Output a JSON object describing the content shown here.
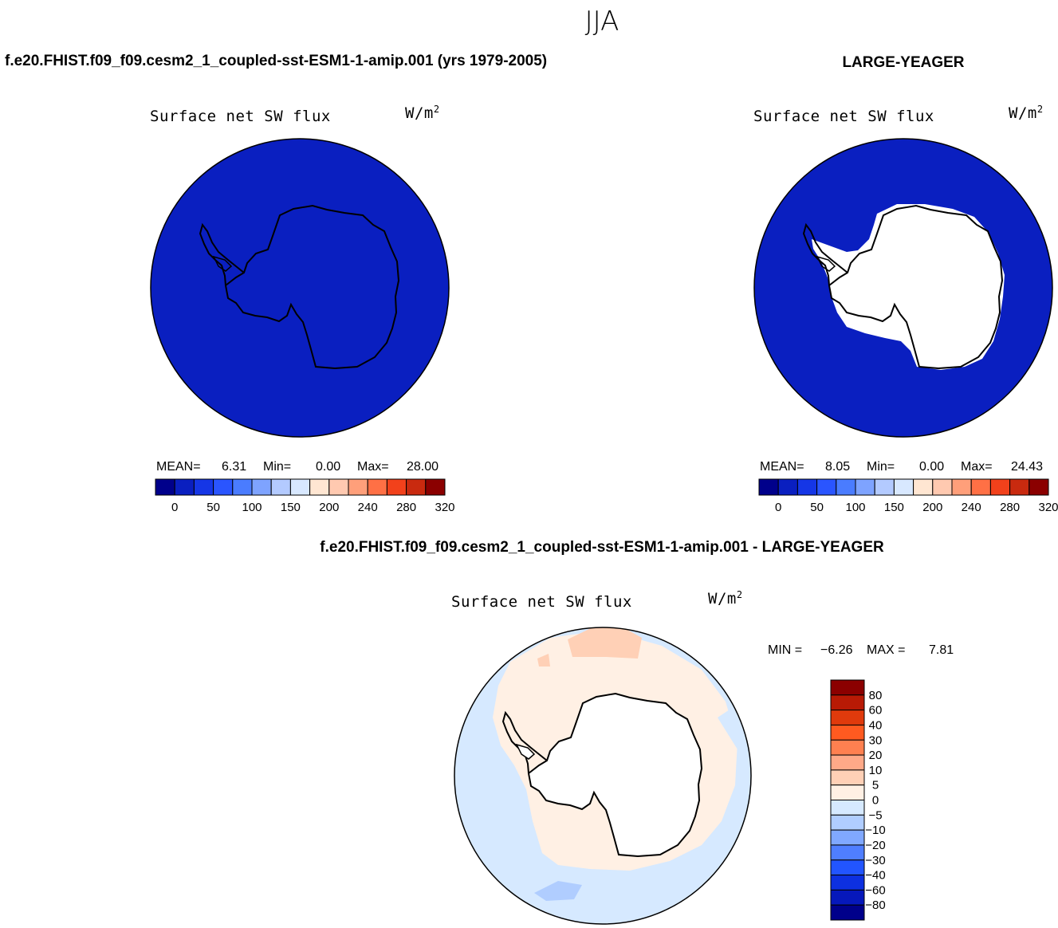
{
  "page": {
    "season": "JJA",
    "panel_left_title": "f.e20.FHIST.f09_f09.cesm2_1_coupled-sst-ESM1-1-amip.001 (yrs 1979-2005)",
    "panel_right_title": "LARGE-YEAGER",
    "panel_diff_title": "f.e20.FHIST.f09_f09.cesm2_1_coupled-sst-ESM1-1-amip.001 - LARGE-YEAGER"
  },
  "panels": [
    {
      "variable": "Surface net SW flux",
      "units": "W/m",
      "units_exp": "2",
      "stats": {
        "mean_label": "MEAN=",
        "mean": "6.31",
        "min_label": "Min=",
        "min": "0.00",
        "max_label": "Max=",
        "max": "28.00"
      }
    },
    {
      "variable": "Surface net SW flux",
      "units": "W/m",
      "units_exp": "2",
      "stats": {
        "mean_label": "MEAN=",
        "mean": "8.05",
        "min_label": "Min=",
        "min": "0.00",
        "max_label": "Max=",
        "max": "24.43"
      }
    },
    {
      "variable": "Surface net SW flux",
      "units": "W/m",
      "units_exp": "2",
      "stats": {
        "min_label": "MIN =",
        "min": "−6.26",
        "max_label": "MAX =",
        "max": "7.81"
      }
    }
  ],
  "colorbar_abs": {
    "colors": [
      "#00008b",
      "#0a1fc0",
      "#1536e6",
      "#2a55ff",
      "#4a7cff",
      "#7ea3ff",
      "#b3caff",
      "#d8e8ff",
      "#ffe6d2",
      "#ffc9b0",
      "#ff9f7a",
      "#ff7045",
      "#f2411b",
      "#c92a0f",
      "#8b0000"
    ],
    "labels": [
      "0",
      "50",
      "100",
      "150",
      "200",
      "240",
      "280",
      "320"
    ]
  },
  "colorbar_diff": {
    "colors": [
      "#8b0000",
      "#b81a05",
      "#e03a0c",
      "#ff5a20",
      "#ff8050",
      "#ffa988",
      "#ffd0b6",
      "#fff0e4",
      "#d6e9ff",
      "#b0cdff",
      "#80a8ff",
      "#4f7eff",
      "#2255ff",
      "#0d30e0",
      "#0618bb",
      "#00008b"
    ],
    "labels": [
      "80",
      "60",
      "40",
      "30",
      "20",
      "10",
      "5",
      "0",
      "−5",
      "−10",
      "−20",
      "−30",
      "−40",
      "−60",
      "−80"
    ]
  }
}
